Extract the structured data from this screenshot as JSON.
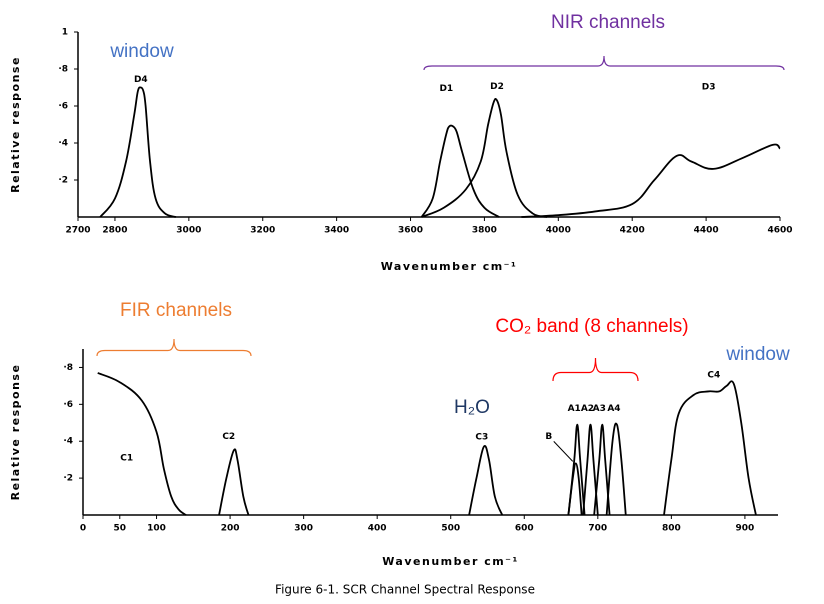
{
  "chart_data": [
    {
      "type": "line",
      "x_label": "Wavenumber   cm⁻¹",
      "y_label": "Relative  response",
      "xlim": [
        2700,
        4600
      ],
      "ylim": [
        0,
        1
      ],
      "xticks": [
        2700,
        2800,
        3000,
        3200,
        3400,
        3600,
        3800,
        4000,
        4200,
        4400,
        4600
      ],
      "yticks": [
        {
          "value": 0.2,
          "label": "·2"
        },
        {
          "value": 0.4,
          "label": "·4"
        },
        {
          "value": 0.6,
          "label": "·6"
        },
        {
          "value": 0.8,
          "label": "·8"
        },
        1
      ],
      "series": [
        {
          "name": "D4",
          "color": "#000000",
          "x": [
            2760,
            2800,
            2830,
            2852,
            2862,
            2870,
            2877,
            2883,
            2895,
            2910,
            2935,
            2965
          ],
          "values": [
            0,
            0.1,
            0.3,
            0.55,
            0.68,
            0.7,
            0.68,
            0.6,
            0.3,
            0.1,
            0.02,
            0
          ]
        },
        {
          "name": "D1",
          "color": "#000000",
          "x": [
            3630,
            3660,
            3680,
            3697,
            3705,
            3715,
            3725,
            3740,
            3770,
            3800,
            3840
          ],
          "values": [
            0,
            0.1,
            0.3,
            0.45,
            0.49,
            0.49,
            0.46,
            0.35,
            0.15,
            0.05,
            0
          ]
        },
        {
          "name": "D2",
          "color": "#000000",
          "x": [
            3630,
            3690,
            3750,
            3790,
            3810,
            3825,
            3834,
            3845,
            3860,
            3890,
            3930,
            3970
          ],
          "values": [
            0,
            0.05,
            0.15,
            0.3,
            0.5,
            0.62,
            0.63,
            0.55,
            0.35,
            0.12,
            0.02,
            0
          ]
        },
        {
          "name": "D3",
          "color": "#000000",
          "x": [
            3900,
            4000,
            4100,
            4200,
            4260,
            4320,
            4360,
            4420,
            4500,
            4580,
            4600
          ],
          "values": [
            0,
            0.01,
            0.03,
            0.07,
            0.2,
            0.33,
            0.3,
            0.26,
            0.32,
            0.39,
            0.37
          ]
        }
      ],
      "annotations": [
        {
          "text": "window",
          "color": "#4472c4"
        },
        {
          "text": "NIR channels",
          "color": "#7030a0"
        }
      ]
    },
    {
      "type": "line",
      "x_label": "Wavenumber   cm⁻¹",
      "y_label": "Relative  response",
      "xlim": [
        0,
        945
      ],
      "ylim": [
        0,
        0.9
      ],
      "xticks": [
        0,
        50,
        100,
        200,
        300,
        400,
        500,
        600,
        700,
        800,
        900
      ],
      "yticks": [
        {
          "value": 0.2,
          "label": "·2"
        },
        {
          "value": 0.4,
          "label": "·4"
        },
        {
          "value": 0.6,
          "label": "·6"
        },
        {
          "value": 0.8,
          "label": "·8"
        }
      ],
      "series": [
        {
          "name": "C1",
          "color": "#000000",
          "x": [
            20,
            50,
            80,
            100,
            110,
            120,
            130,
            140
          ],
          "values": [
            0.77,
            0.72,
            0.62,
            0.45,
            0.25,
            0.1,
            0.03,
            0
          ]
        },
        {
          "name": "C2",
          "color": "#000000",
          "x": [
            185,
            195,
            205,
            210,
            218,
            225
          ],
          "values": [
            0,
            0.2,
            0.35,
            0.3,
            0.1,
            0
          ]
        },
        {
          "name": "C3",
          "color": "#000000",
          "x": [
            525,
            535,
            545,
            552,
            560,
            570
          ],
          "values": [
            0,
            0.2,
            0.37,
            0.3,
            0.1,
            0
          ]
        },
        {
          "name": "B",
          "color": "#000000",
          "x": [
            660,
            666,
            670,
            674,
            678
          ],
          "values": [
            0,
            0.2,
            0.28,
            0.2,
            0
          ]
        },
        {
          "name": "A1",
          "color": "#000000",
          "x": [
            660,
            668,
            672,
            676,
            682
          ],
          "values": [
            0,
            0.3,
            0.49,
            0.3,
            0
          ]
        },
        {
          "name": "A2",
          "color": "#000000",
          "x": [
            680,
            686,
            690,
            694,
            700
          ],
          "values": [
            0,
            0.3,
            0.49,
            0.3,
            0
          ]
        },
        {
          "name": "A3",
          "color": "#000000",
          "x": [
            695,
            702,
            706,
            710,
            716
          ],
          "values": [
            0,
            0.3,
            0.49,
            0.3,
            0
          ]
        },
        {
          "name": "A4",
          "color": "#000000",
          "x": [
            712,
            720,
            726,
            732,
            738
          ],
          "values": [
            0,
            0.4,
            0.49,
            0.3,
            0
          ]
        },
        {
          "name": "C4",
          "color": "#000000",
          "x": [
            790,
            800,
            810,
            830,
            850,
            865,
            875,
            885,
            895,
            905,
            915
          ],
          "values": [
            0,
            0.3,
            0.55,
            0.65,
            0.67,
            0.67,
            0.7,
            0.71,
            0.5,
            0.2,
            0
          ]
        }
      ],
      "annotations": [
        {
          "text": "FIR channels",
          "color": "#ed7d31"
        },
        {
          "text": "CO₂ band (8 channels)",
          "color": "#ff0000"
        },
        {
          "text": "H₂O",
          "color": "#1f3864"
        },
        {
          "text": "window",
          "color": "#4472c4"
        }
      ]
    }
  ],
  "caption": "Figure 6-1.  SCR Channel Spectral Response"
}
